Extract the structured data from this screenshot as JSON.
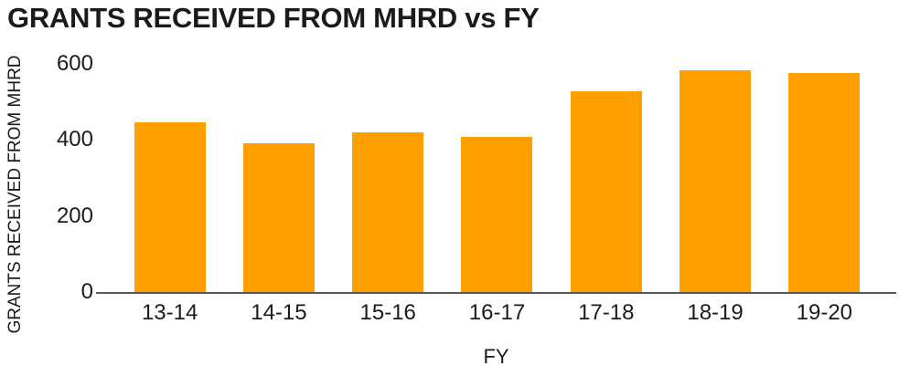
{
  "chart_data": {
    "type": "bar",
    "title": "GRANTS RECEIVED FROM MHRD vs FY",
    "xlabel": "FY",
    "ylabel": "GRANTS RECEIVED FROM MHRD",
    "categories": [
      "13-14",
      "14-15",
      "15-16",
      "16-17",
      "17-18",
      "18-19",
      "19-20"
    ],
    "values": [
      447,
      392,
      420,
      408,
      529,
      583,
      577
    ],
    "yticks": [
      0,
      200,
      400,
      600
    ],
    "ylim": [
      0,
      600
    ],
    "grid": false,
    "legend": false,
    "colors": {
      "bar": "#FFA000",
      "axis_line": "#58585b",
      "text": "#1b1b1b",
      "background": "#ffffff"
    }
  }
}
